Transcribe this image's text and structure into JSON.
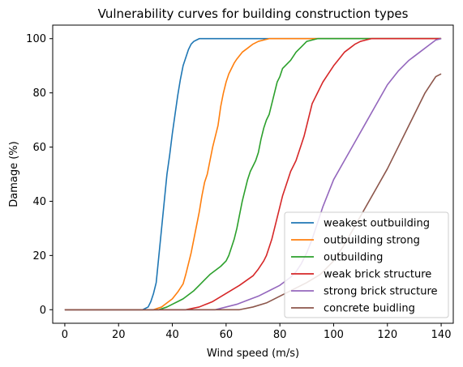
{
  "chart_data": {
    "type": "line",
    "title": "Vulnerability curves for building construction types",
    "xlabel": "Wind speed (m/s)",
    "ylabel": "Damage (%)",
    "xlim": [
      -4.5,
      144.5
    ],
    "ylim": [
      -5,
      105
    ],
    "xticks": [
      0,
      20,
      40,
      60,
      80,
      100,
      120,
      140
    ],
    "yticks": [
      0,
      20,
      40,
      60,
      80,
      100
    ],
    "grid": false,
    "legend_position": "lower right",
    "series": [
      {
        "name": "weakest outbuilding",
        "color": "#1f77b4",
        "x": [
          0,
          29,
          31,
          32,
          33,
          34,
          35,
          36,
          37,
          38,
          39,
          40,
          41,
          42,
          43,
          44,
          45,
          46,
          47,
          48,
          49,
          50,
          52,
          55,
          140
        ],
        "y": [
          0,
          0,
          1,
          3,
          6,
          10,
          20,
          30,
          40,
          50,
          57,
          65,
          72,
          79,
          85,
          90,
          93,
          96,
          98,
          99,
          99.5,
          100,
          100,
          100,
          100
        ]
      },
      {
        "name": "outbuilding strong",
        "color": "#ff7f0e",
        "x": [
          0,
          33,
          36,
          38,
          40,
          42,
          44,
          45,
          46,
          47,
          48,
          49,
          50,
          51,
          52,
          53,
          54,
          55,
          56,
          57,
          58,
          59,
          60,
          61,
          62,
          63,
          64,
          66,
          68,
          70,
          72,
          74,
          76,
          78,
          80,
          140
        ],
        "y": [
          0,
          0,
          1,
          2.5,
          4,
          6.5,
          9.5,
          13,
          17,
          21,
          26,
          31,
          36,
          42,
          47,
          50,
          55,
          60,
          64,
          68,
          75,
          80,
          84,
          87,
          89,
          91,
          92.5,
          95,
          96.5,
          98,
          99,
          99.5,
          100,
          100,
          100,
          100
        ]
      },
      {
        "name": "outbuilding",
        "color": "#2ca02c",
        "x": [
          0,
          35,
          38,
          40,
          42,
          44,
          46,
          48,
          50,
          52,
          54,
          56,
          58,
          60,
          61,
          62,
          63,
          64,
          65,
          66,
          67,
          68,
          69,
          70,
          71,
          72,
          73,
          74,
          75,
          76,
          77,
          78,
          79,
          80,
          81,
          82,
          83,
          84,
          85,
          86,
          87,
          88,
          89,
          90,
          92,
          94,
          96,
          98,
          100,
          102,
          140
        ],
        "y": [
          0,
          0,
          1,
          2,
          3,
          4,
          5.5,
          7,
          9,
          11,
          13,
          14.5,
          16,
          18,
          20,
          23,
          26,
          30,
          35,
          40,
          44,
          48,
          51,
          53,
          55,
          58,
          63,
          67,
          70,
          72,
          76,
          80,
          84,
          86,
          89,
          90,
          91,
          92,
          93.5,
          95,
          96,
          97,
          98,
          99,
          99.5,
          100,
          100,
          100,
          100,
          100,
          100
        ]
      },
      {
        "name": "weak brick structure",
        "color": "#d62728",
        "x": [
          0,
          32,
          34,
          36,
          40,
          45,
          50,
          55,
          60,
          65,
          70,
          72,
          74,
          75,
          76,
          77,
          78,
          79,
          80,
          81,
          82,
          83,
          84,
          85,
          86,
          87,
          88,
          89,
          90,
          91,
          92,
          93,
          94,
          95,
          96,
          98,
          100,
          102,
          104,
          106,
          108,
          110,
          112,
          114,
          116,
          118,
          120,
          122,
          125,
          130,
          135,
          140
        ],
        "y": [
          0,
          0,
          0,
          0,
          0,
          0,
          1,
          3,
          6,
          9,
          12.5,
          15,
          18,
          20,
          23,
          26,
          30,
          34,
          38,
          42,
          45,
          48,
          51,
          53,
          55,
          58,
          61,
          64,
          68,
          72,
          76,
          78,
          80,
          82,
          84,
          87,
          90,
          92.5,
          95,
          96.5,
          98,
          99,
          99.5,
          100,
          100,
          100,
          100,
          100,
          100,
          100,
          100,
          100
        ]
      },
      {
        "name": "strong brick structure",
        "color": "#9467bd",
        "x": [
          0,
          44,
          48,
          52,
          56,
          60,
          64,
          68,
          72,
          76,
          80,
          84,
          86,
          88,
          90,
          92,
          94,
          96,
          98,
          100,
          104,
          108,
          112,
          116,
          120,
          124,
          128,
          132,
          136,
          138,
          140
        ],
        "y": [
          0,
          0,
          0,
          0,
          0,
          1,
          2,
          3.5,
          5,
          7,
          9,
          12,
          14,
          17,
          21,
          26,
          32,
          38,
          43,
          48,
          55,
          62,
          69,
          76,
          83,
          88,
          92,
          95,
          98,
          99.5,
          100
        ]
      },
      {
        "name": "concrete buidling",
        "color": "#8c564b",
        "x": [
          0,
          50,
          55,
          60,
          65,
          70,
          75,
          80,
          85,
          90,
          95,
          100,
          104,
          108,
          112,
          116,
          120,
          124,
          128,
          130,
          132,
          134,
          136,
          138,
          140
        ],
        "y": [
          0,
          0,
          0,
          0,
          0,
          1,
          2.5,
          5,
          7.5,
          10,
          13,
          18,
          24,
          31,
          38,
          45,
          52,
          60,
          68,
          72,
          76,
          80,
          83,
          86,
          87
        ]
      }
    ]
  }
}
